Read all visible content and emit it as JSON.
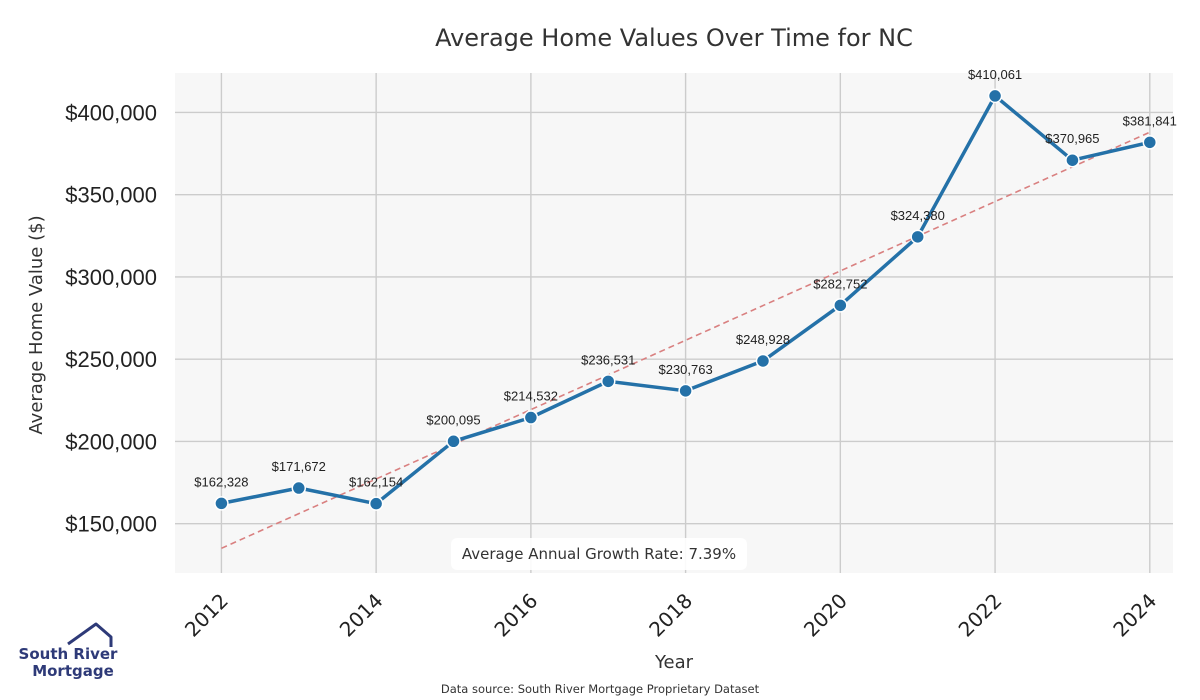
{
  "chart_data": {
    "type": "line",
    "title": "Average Home Values Over Time for NC",
    "xlabel": "Year",
    "ylabel": "Average Home Value ($)",
    "x": [
      2012,
      2013,
      2014,
      2015,
      2016,
      2017,
      2018,
      2019,
      2020,
      2021,
      2022,
      2023,
      2024
    ],
    "series": [
      {
        "values": [
          162328,
          171672,
          162154,
          200095,
          214532,
          236531,
          230763,
          248928,
          282752,
          324380,
          410061,
          370965,
          381841
        ],
        "labels": [
          "$162,328",
          "$171,672",
          "$162,154",
          "$200,095",
          "$214,532",
          "$236,531",
          "$230,763",
          "$248,928",
          "$282,752",
          "$324,380",
          "$410,061",
          "$370,965",
          "$381,841"
        ],
        "color": "#2471a8"
      }
    ],
    "trendline": {
      "style": "dashed",
      "color": "#d98080",
      "start": [
        2012,
        135000
      ],
      "end": [
        2024,
        388000
      ]
    },
    "x_ticks": [
      2012,
      2014,
      2016,
      2018,
      2020,
      2022,
      2024
    ],
    "x_tick_labels": [
      "2012",
      "2014",
      "2016",
      "2018",
      "2020",
      "2022",
      "2024"
    ],
    "y_ticks": [
      150000,
      200000,
      250000,
      300000,
      350000,
      400000
    ],
    "y_tick_labels": [
      "$150,000",
      "$200,000",
      "$250,000",
      "$300,000",
      "$350,000",
      "$400,000"
    ],
    "xlim": [
      2011.4,
      2024.3
    ],
    "ylim": [
      120000,
      424000
    ],
    "grid": true,
    "annotation": "Average Annual Growth Rate: 7.39%",
    "source": "Data source: South River Mortgage Proprietary Dataset"
  },
  "logo": {
    "line1": "South River",
    "line2": "Mortgage",
    "color": "#2e3a78"
  },
  "colors": {
    "plot_bg": "#f7f7f7",
    "grid": "#cccccc"
  }
}
